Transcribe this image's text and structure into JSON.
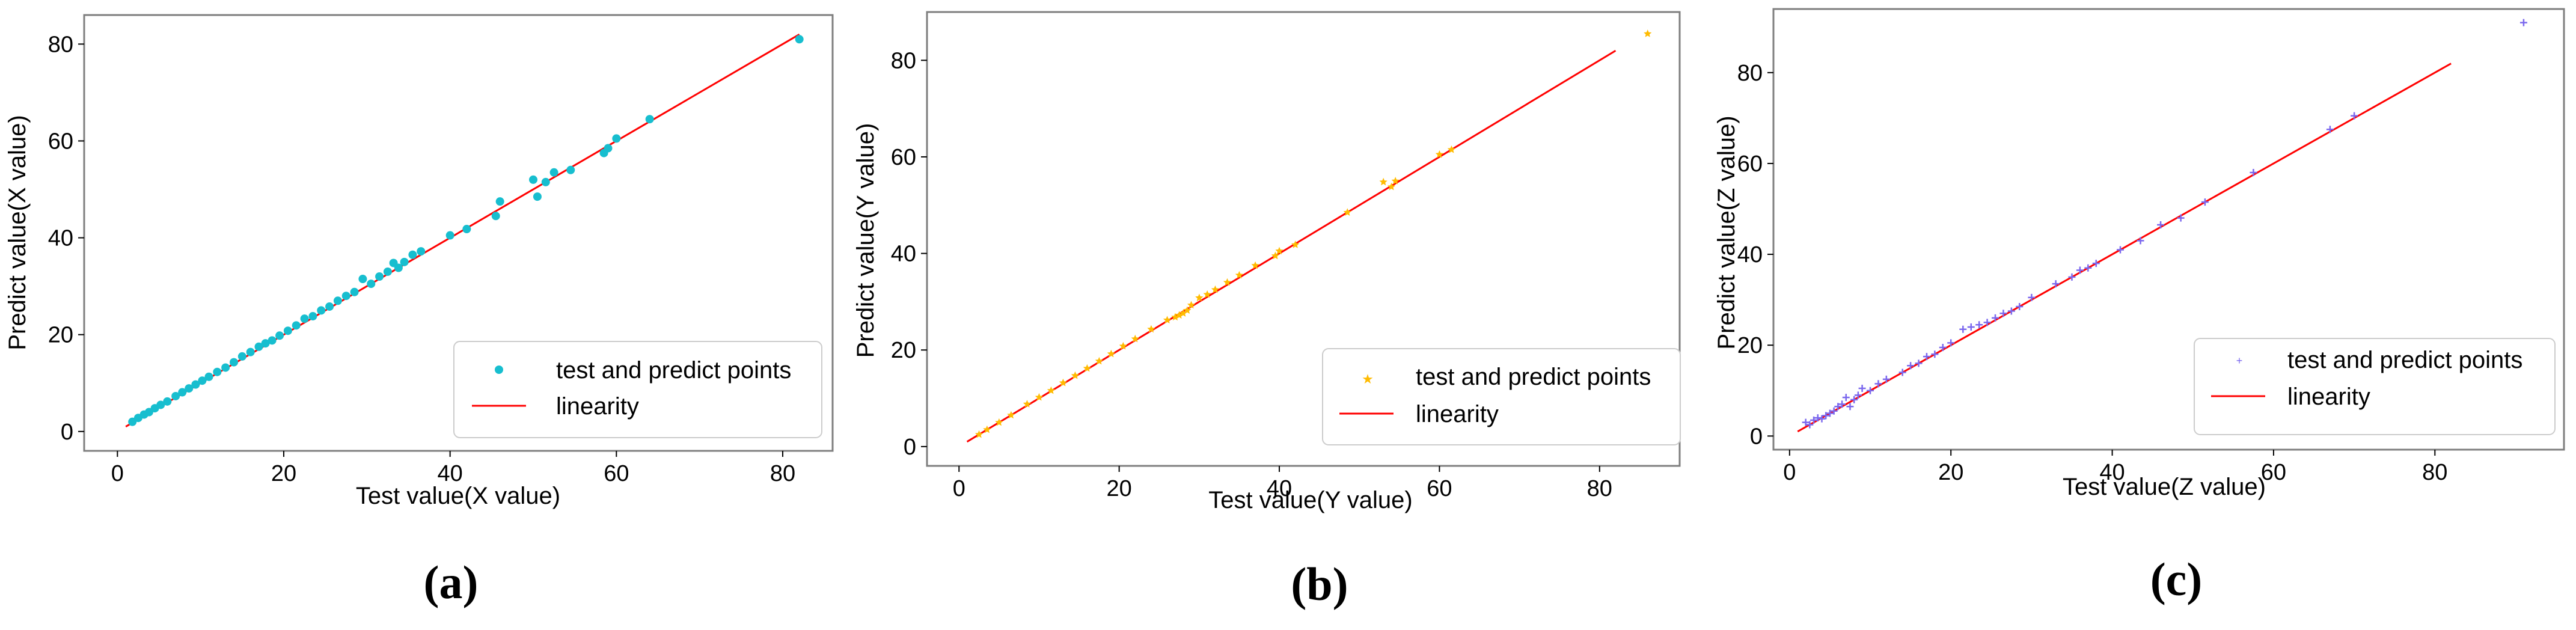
{
  "chart_data": [
    {
      "panel_label": "(a)",
      "type": "scatter",
      "xlabel": "Test value(X value)",
      "ylabel": "Predict value(X value)",
      "xlim": [
        -4,
        86
      ],
      "ylim": [
        -4,
        86
      ],
      "xticks": [
        "0",
        "20",
        "40",
        "60",
        "80"
      ],
      "yticks": [
        "0",
        "20",
        "40",
        "60",
        "80"
      ],
      "legend_position": "lower-right",
      "grid": false,
      "series": [
        {
          "name": "test and predict points",
          "kind": "scatter",
          "color": "#17becf",
          "marker": "circle",
          "x": [
            1.8,
            2.5,
            3.2,
            3.8,
            4.5,
            5.2,
            6.0,
            7.0,
            7.8,
            8.6,
            9.4,
            10.2,
            11.0,
            12.0,
            13.0,
            14.0,
            15.0,
            16.0,
            17.0,
            17.8,
            18.6,
            19.5,
            20.5,
            21.5,
            22.5,
            23.5,
            24.5,
            25.5,
            26.5,
            27.5,
            28.5,
            29.5,
            30.5,
            31.5,
            32.5,
            33.2,
            33.8,
            34.5,
            35.5,
            36.5,
            40.0,
            42.0,
            45.5,
            46.0,
            50.0,
            50.5,
            51.5,
            52.5,
            54.5,
            58.5,
            59.0,
            60.0,
            64.0,
            82.0
          ],
          "y": [
            2.0,
            2.8,
            3.5,
            4.0,
            4.8,
            5.5,
            6.2,
            7.3,
            8.1,
            8.9,
            9.7,
            10.5,
            11.3,
            12.3,
            13.2,
            14.3,
            15.5,
            16.4,
            17.5,
            18.2,
            18.8,
            19.8,
            20.8,
            21.9,
            23.3,
            23.8,
            25.0,
            25.8,
            27.0,
            28.0,
            28.8,
            31.5,
            30.5,
            32.0,
            33.0,
            34.8,
            33.8,
            35.0,
            36.5,
            37.2,
            40.5,
            41.8,
            44.5,
            47.5,
            52.0,
            48.5,
            51.5,
            53.5,
            54.0,
            57.5,
            58.5,
            60.5,
            64.5,
            81.0
          ]
        },
        {
          "name": "linearity",
          "kind": "line",
          "color": "#ff0000",
          "x": [
            1,
            82
          ],
          "y": [
            1,
            82
          ]
        }
      ]
    },
    {
      "panel_label": "(b)",
      "type": "scatter",
      "xlabel": "Test value(Y value)",
      "ylabel": "Predict value(Y value)",
      "xlim": [
        -4,
        90
      ],
      "ylim": [
        -4,
        90
      ],
      "xticks": [
        "0",
        "20",
        "40",
        "60",
        "80"
      ],
      "yticks": [
        "0",
        "20",
        "40",
        "60",
        "80"
      ],
      "legend_position": "lower-right",
      "grid": false,
      "series": [
        {
          "name": "test and predict points",
          "kind": "scatter",
          "color": "#ffbb00",
          "marker": "star",
          "x": [
            2.5,
            3.5,
            5.0,
            6.5,
            8.5,
            10.0,
            11.5,
            13.0,
            14.5,
            16.0,
            17.5,
            19.0,
            20.5,
            22.0,
            24.0,
            26.0,
            27.0,
            27.5,
            28.0,
            28.5,
            29.0,
            30.0,
            31.0,
            32.0,
            33.5,
            35.0,
            37.0,
            39.5,
            40.0,
            42.0,
            48.5,
            53.0,
            54.0,
            54.5,
            60.0,
            61.5,
            86.0
          ],
          "y": [
            2.5,
            3.5,
            5.0,
            6.5,
            8.8,
            10.2,
            11.6,
            13.2,
            14.7,
            16.2,
            17.7,
            19.2,
            20.8,
            22.3,
            24.3,
            26.2,
            26.8,
            27.2,
            27.6,
            28.2,
            29.3,
            30.8,
            31.5,
            32.5,
            34.0,
            35.5,
            37.5,
            39.5,
            40.5,
            41.8,
            48.5,
            54.8,
            53.8,
            55.0,
            60.5,
            61.5,
            85.5
          ]
        },
        {
          "name": "linearity",
          "kind": "line",
          "color": "#ff0000",
          "x": [
            1,
            82
          ],
          "y": [
            1,
            82
          ]
        }
      ]
    },
    {
      "panel_label": "(c)",
      "type": "scatter",
      "xlabel": "Test value(Z value)",
      "ylabel": "Predict value(Z value)",
      "xlim": [
        -2,
        96
      ],
      "ylim": [
        -3,
        94
      ],
      "xticks": [
        "0",
        "20",
        "40",
        "60",
        "80"
      ],
      "yticks": [
        "0",
        "20",
        "40",
        "60",
        "80"
      ],
      "legend_position": "lower-right",
      "grid": false,
      "series": [
        {
          "name": "test and predict points",
          "kind": "scatter",
          "color": "#7b68ee",
          "marker": "plus",
          "x": [
            2.0,
            2.5,
            3.0,
            3.5,
            4.0,
            4.5,
            5.0,
            5.5,
            6.0,
            6.5,
            7.0,
            7.5,
            8.0,
            8.5,
            9.0,
            10.0,
            11.0,
            12.0,
            14.0,
            15.0,
            16.0,
            17.0,
            18.0,
            19.0,
            20.0,
            21.5,
            22.5,
            23.5,
            24.5,
            25.5,
            26.5,
            27.5,
            28.5,
            30.0,
            33.0,
            35.0,
            36.0,
            37.0,
            38.0,
            41.0,
            43.5,
            46.0,
            48.5,
            51.5,
            57.5,
            67.0,
            70.0,
            91.0
          ],
          "y": [
            3.0,
            2.5,
            3.5,
            4.0,
            3.8,
            4.5,
            5.0,
            5.5,
            6.5,
            7.0,
            8.5,
            6.5,
            8.0,
            9.0,
            10.5,
            10.0,
            11.5,
            12.5,
            14.0,
            15.5,
            16.0,
            17.5,
            18.0,
            19.5,
            20.5,
            23.5,
            24.0,
            24.5,
            25.0,
            26.0,
            27.0,
            27.5,
            28.5,
            30.5,
            33.5,
            35.0,
            36.5,
            37.0,
            38.0,
            41.0,
            43.0,
            46.5,
            48.0,
            51.5,
            58.0,
            67.5,
            70.5,
            91.0
          ]
        },
        {
          "name": "linearity",
          "kind": "line",
          "color": "#ff0000",
          "x": [
            1,
            82
          ],
          "y": [
            1,
            82
          ]
        }
      ]
    }
  ]
}
